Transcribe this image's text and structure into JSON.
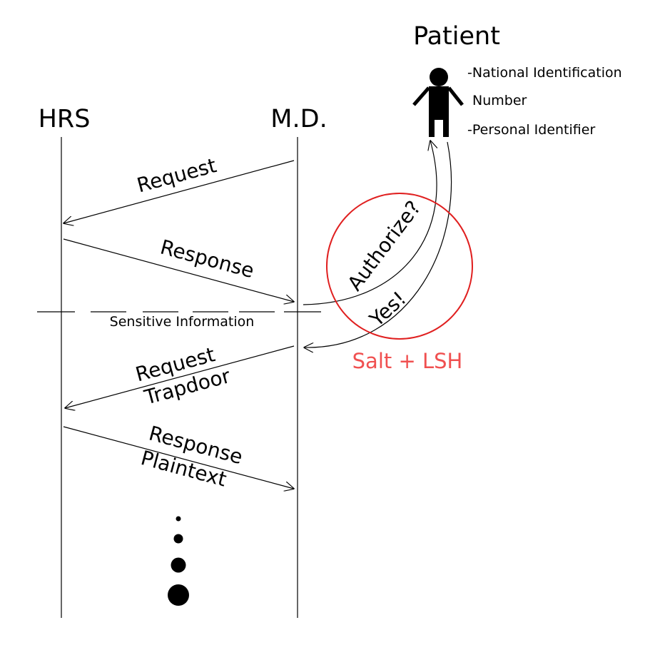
{
  "diagram": {
    "actors": {
      "hrs": "HRS",
      "md": "M.D.",
      "patient": "Patient"
    },
    "patient_info": {
      "line1": "-National Identification",
      "line2": "Number",
      "line3": "-Personal  Identifier"
    },
    "messages": {
      "request": "Request",
      "response": "Response",
      "sensitive": "Sensitive Information",
      "request2_line1": "Request",
      "request2_line2": "Trapdoor",
      "response2_line1": "Response",
      "response2_line2": "Plaintext"
    },
    "auth": {
      "authorize": "Authorize?",
      "yes": "Yes!",
      "note": "Salt + LSH"
    },
    "colors": {
      "ink": "#000000",
      "accent": "#f05050",
      "circle": "#e02020"
    }
  }
}
